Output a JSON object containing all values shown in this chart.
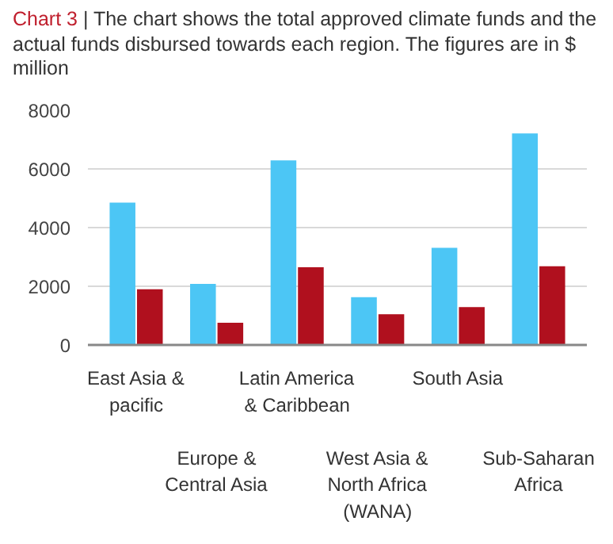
{
  "chart_data": {
    "type": "bar",
    "title": "Chart 3 | The chart shows the total approved climate funds and the actual funds disbursed towards each region. The figures are in $ million",
    "categories": [
      "East Asia & pacific",
      "Europe & Central Asia",
      "Latin America & Caribbean",
      "West Asia & North Africa (WANA)",
      "South Asia",
      "Sub-Saharan Africa"
    ],
    "series": [
      {
        "color": "#4cc6f5",
        "values": [
          4850,
          2080,
          6290,
          1630,
          3310,
          7210
        ]
      },
      {
        "color": "#b0101e",
        "values": [
          1900,
          760,
          2650,
          1050,
          1290,
          2680
        ]
      }
    ],
    "ylim": [
      0,
      8000
    ],
    "yticks": [
      0,
      2000,
      4000,
      6000,
      8000
    ],
    "grid": "y"
  }
}
